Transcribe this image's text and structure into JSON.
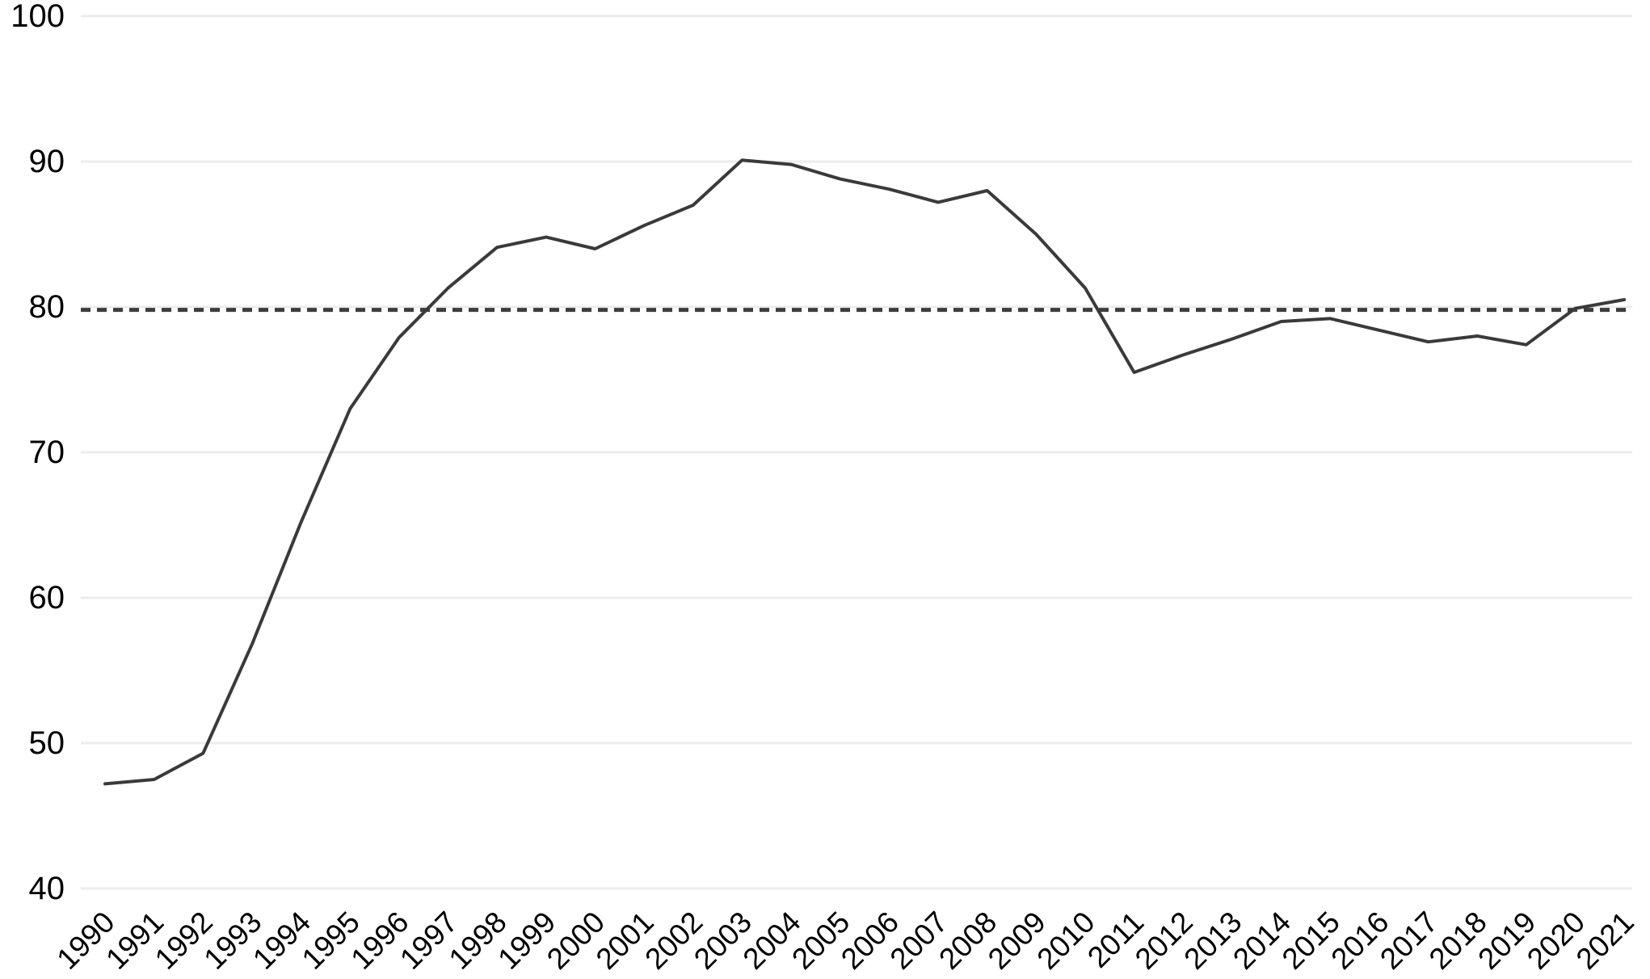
{
  "chart_data": {
    "type": "line",
    "title": "",
    "xlabel": "",
    "ylabel": "",
    "legend": "none",
    "ylim": [
      40,
      100
    ],
    "yticks": [
      100,
      90,
      80,
      70,
      60,
      50,
      40
    ],
    "grid": {
      "horizontal": true,
      "vertical": false,
      "color": "#ececec"
    },
    "background": "#ffffff",
    "axis_label_color": "#000000",
    "categories": [
      "1990",
      "1991",
      "1992",
      "1993",
      "1994",
      "1995",
      "1996",
      "1997",
      "1998",
      "1999",
      "2000",
      "2001",
      "2002",
      "2003",
      "2004",
      "2005",
      "2006",
      "2007",
      "2008",
      "2009",
      "2010",
      "2011",
      "2012",
      "2013",
      "2014",
      "2015",
      "2016",
      "2017",
      "2018",
      "2019",
      "2020",
      "2021"
    ],
    "series": [
      {
        "name": "main-series",
        "color": "#3a3a3a",
        "values": [
          47.2,
          47.5,
          49.3,
          56.8,
          65.2,
          73.0,
          77.9,
          81.3,
          84.1,
          84.8,
          84.0,
          85.6,
          87.0,
          90.1,
          89.8,
          88.8,
          88.1,
          87.2,
          88.0,
          85.0,
          81.3,
          75.5,
          76.7,
          77.8,
          79.0,
          79.2,
          78.4,
          77.6,
          78.0,
          77.4,
          79.9,
          80.5
        ]
      }
    ],
    "reference_line": {
      "name": "dashed-80-reference",
      "value": 79.8,
      "style": "dashed",
      "color": "#3d3d3d"
    }
  }
}
